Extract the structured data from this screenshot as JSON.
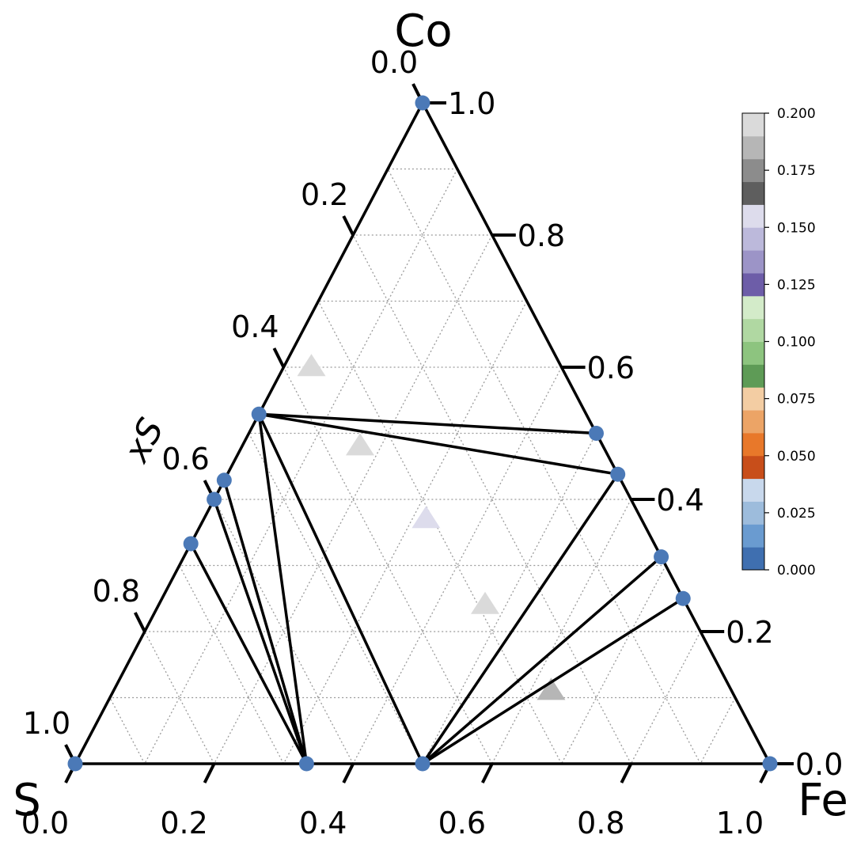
{
  "chart_data": {
    "type": "scatter",
    "subtype": "ternary",
    "corner_labels": {
      "top": "Co",
      "left": "S",
      "right": "Fe"
    },
    "axis_label": "xS",
    "tick_values": [
      0.0,
      0.2,
      0.4,
      0.6,
      0.8,
      1.0
    ],
    "tick_labels": [
      "0.0",
      "0.2",
      "0.4",
      "0.6",
      "0.8",
      "1.0"
    ],
    "grid": true,
    "grid_step": 0.1,
    "points": [
      {
        "S": 0.0,
        "Co": 1.0,
        "Fe": 0.0
      },
      {
        "S": 0.471,
        "Co": 0.529,
        "Fe": 0.0
      },
      {
        "S": 0.571,
        "Co": 0.429,
        "Fe": 0.0
      },
      {
        "S": 0.6,
        "Co": 0.4,
        "Fe": 0.0
      },
      {
        "S": 0.667,
        "Co": 0.333,
        "Fe": 0.0
      },
      {
        "S": 1.0,
        "Co": 0.0,
        "Fe": 0.0
      },
      {
        "S": 0.667,
        "Co": 0.0,
        "Fe": 0.333
      },
      {
        "S": 0.5,
        "Co": 0.0,
        "Fe": 0.5
      },
      {
        "S": 0.0,
        "Co": 0.0,
        "Fe": 1.0
      },
      {
        "S": 0.0,
        "Co": 0.5,
        "Fe": 0.5
      },
      {
        "S": 0.0,
        "Co": 0.438,
        "Fe": 0.562
      },
      {
        "S": 0.0,
        "Co": 0.313,
        "Fe": 0.687
      },
      {
        "S": 0.0,
        "Co": 0.25,
        "Fe": 0.75
      }
    ],
    "tie_lines": [
      [
        [
          0.471,
          0.529,
          0.0
        ],
        [
          0.0,
          0.5,
          0.5
        ]
      ],
      [
        [
          0.471,
          0.529,
          0.0
        ],
        [
          0.0,
          0.438,
          0.562
        ]
      ],
      [
        [
          0.471,
          0.529,
          0.0
        ],
        [
          0.667,
          0.0,
          0.333
        ]
      ],
      [
        [
          0.471,
          0.529,
          0.0
        ],
        [
          0.5,
          0.0,
          0.5
        ]
      ],
      [
        [
          0.571,
          0.429,
          0.0
        ],
        [
          0.667,
          0.0,
          0.333
        ]
      ],
      [
        [
          0.6,
          0.4,
          0.0
        ],
        [
          0.667,
          0.0,
          0.333
        ]
      ],
      [
        [
          0.667,
          0.333,
          0.0
        ],
        [
          0.667,
          0.0,
          0.333
        ]
      ],
      [
        [
          0.5,
          0.0,
          0.5
        ],
        [
          0.0,
          0.438,
          0.562
        ]
      ],
      [
        [
          0.5,
          0.0,
          0.5
        ],
        [
          0.0,
          0.313,
          0.687
        ]
      ],
      [
        [
          0.5,
          0.0,
          0.5
        ],
        [
          0.0,
          0.25,
          0.75
        ]
      ]
    ],
    "triangle_markers": [
      {
        "S": 0.36,
        "Co": 0.6,
        "Fe": 0.04,
        "value": 0.19
      },
      {
        "S": 0.35,
        "Co": 0.48,
        "Fe": 0.17,
        "value": 0.19
      },
      {
        "S": 0.31,
        "Co": 0.37,
        "Fe": 0.32,
        "value": 0.155
      },
      {
        "S": 0.29,
        "Co": 0.24,
        "Fe": 0.47,
        "value": 0.19
      },
      {
        "S": 0.26,
        "Co": 0.11,
        "Fe": 0.63,
        "value": 0.185
      }
    ],
    "colorbar": {
      "ticks": [
        "0.000",
        "0.025",
        "0.050",
        "0.075",
        "0.100",
        "0.125",
        "0.150",
        "0.175",
        "0.200"
      ],
      "range": [
        0.0,
        0.2
      ],
      "colors": [
        "#3f6fb0",
        "#6a9bd0",
        "#9dbcdc",
        "#c8d8ec",
        "#c84e1a",
        "#e8782a",
        "#eca466",
        "#f3cda3",
        "#5e9b56",
        "#8dc47f",
        "#b0d8a2",
        "#d3ebc9",
        "#6d5da8",
        "#9c94c7",
        "#bcb9db",
        "#dddcec",
        "#5e5e5e",
        "#8c8c8c",
        "#b6b6b6",
        "#dadada"
      ]
    },
    "colors": {
      "point": "#4b79b7",
      "line": "#000000"
    }
  }
}
